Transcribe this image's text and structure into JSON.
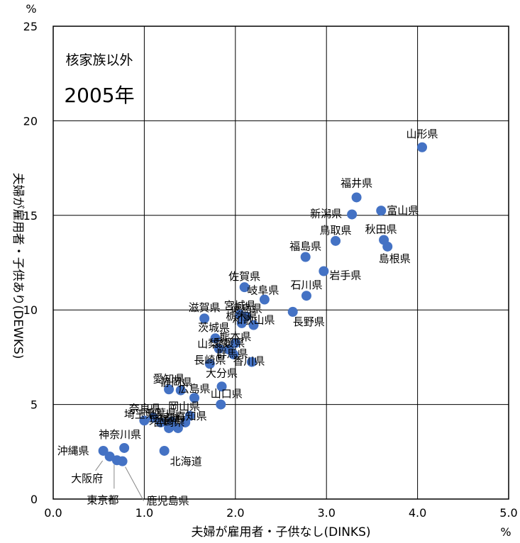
{
  "chart_data": {
    "type": "scatter",
    "title": "",
    "annotations": [
      "核家族以外",
      "2005年"
    ],
    "xlabel": "夫婦が雇用者・子供なし(DINKS)",
    "ylabel": "夫婦が雇用者・子供あり(DEWKS)",
    "x_unit": "%",
    "y_unit": "%",
    "xlim": [
      0,
      5
    ],
    "ylim": [
      0,
      25
    ],
    "xticks": [
      "0.0",
      "1.0",
      "2.0",
      "3.0",
      "4.0",
      "5.0"
    ],
    "yticks": [
      "0",
      "5",
      "10",
      "15",
      "20",
      "25"
    ],
    "grid": true,
    "marker_color": "#4472C4",
    "points": [
      {
        "x": 4.05,
        "y": 18.6,
        "label": "山形県"
      },
      {
        "x": 3.33,
        "y": 15.95,
        "label": "福井県"
      },
      {
        "x": 3.28,
        "y": 15.05,
        "label": "新潟県"
      },
      {
        "x": 3.6,
        "y": 15.25,
        "label": "富山県"
      },
      {
        "x": 3.1,
        "y": 13.65,
        "label": "鳥取県"
      },
      {
        "x": 3.63,
        "y": 13.7,
        "label": "秋田県"
      },
      {
        "x": 3.67,
        "y": 13.35,
        "label": "島根県"
      },
      {
        "x": 2.77,
        "y": 12.8,
        "label": "福島県"
      },
      {
        "x": 2.97,
        "y": 12.05,
        "label": "岩手県"
      },
      {
        "x": 2.1,
        "y": 11.2,
        "label": "佐賀県"
      },
      {
        "x": 2.32,
        "y": 10.55,
        "label": "岐阜県"
      },
      {
        "x": 2.78,
        "y": 10.75,
        "label": "石川県"
      },
      {
        "x": 2.63,
        "y": 9.9,
        "label": "長野県"
      },
      {
        "x": 1.66,
        "y": 9.55,
        "label": "滋賀県"
      },
      {
        "x": 2.05,
        "y": 9.75,
        "label": "宮城県"
      },
      {
        "x": 2.12,
        "y": 9.65,
        "label": "徳島県"
      },
      {
        "x": 2.2,
        "y": 9.2,
        "label": "和歌山県"
      },
      {
        "x": 2.07,
        "y": 9.3,
        "label": "栃木県"
      },
      {
        "x": 1.78,
        "y": 8.5,
        "label": "茨城県"
      },
      {
        "x": 2.0,
        "y": 8.25,
        "label": "熊本県"
      },
      {
        "x": 1.82,
        "y": 7.95,
        "label": "山梨県"
      },
      {
        "x": 1.93,
        "y": 7.9,
        "label": "愛媛県"
      },
      {
        "x": 1.98,
        "y": 7.65,
        "label": "群馬県"
      },
      {
        "x": 2.18,
        "y": 7.25,
        "label": "香川県"
      },
      {
        "x": 1.72,
        "y": 7.15,
        "label": "長崎県"
      },
      {
        "x": 1.85,
        "y": 5.95,
        "label": "大分県"
      },
      {
        "x": 1.27,
        "y": 5.8,
        "label": "愛知県"
      },
      {
        "x": 1.4,
        "y": 5.75,
        "label": "静岡県"
      },
      {
        "x": 1.55,
        "y": 5.35,
        "label": "広島県"
      },
      {
        "x": 1.84,
        "y": 5.0,
        "label": "山口県"
      },
      {
        "x": 1.5,
        "y": 4.4,
        "label": "岡山県"
      },
      {
        "x": 1.1,
        "y": 4.3,
        "label": "奈良県"
      },
      {
        "x": 1.0,
        "y": 4.15,
        "label": "埼玉県"
      },
      {
        "x": 1.18,
        "y": 4.05,
        "label": "千葉県"
      },
      {
        "x": 1.3,
        "y": 4.1,
        "label": "宮崎県"
      },
      {
        "x": 1.45,
        "y": 4.05,
        "label": "高知県"
      },
      {
        "x": 1.27,
        "y": 3.75,
        "label": "兵庫県"
      },
      {
        "x": 1.37,
        "y": 3.75,
        "label": "京都府"
      },
      {
        "x": 0.78,
        "y": 2.7,
        "label": "神奈川県"
      },
      {
        "x": 0.55,
        "y": 2.55,
        "label": "沖縄県"
      },
      {
        "x": 1.22,
        "y": 2.55,
        "label": "北海道"
      },
      {
        "x": 0.62,
        "y": 2.25,
        "label": "大阪府"
      },
      {
        "x": 0.7,
        "y": 2.05,
        "label": "東京都"
      },
      {
        "x": 0.76,
        "y": 2.0,
        "label": "鹿児島県"
      }
    ]
  }
}
